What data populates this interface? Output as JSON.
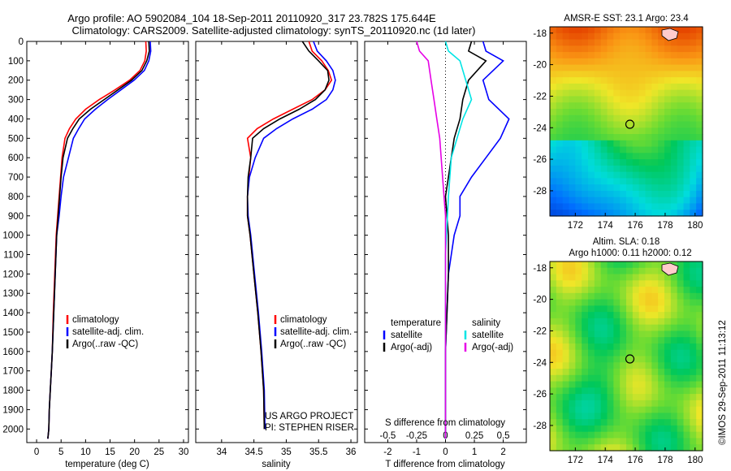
{
  "title": {
    "line1": "Argo profile: AO 5902084_104 18-Sep-2011 20110920_317 23.782S 175.644E",
    "line2": "Climatology: CARS2009. Satellite-adjusted climatology: synTS_20110920.nc (1d later)"
  },
  "credit": "©IMOS 29-Sep-2011 11:13:12",
  "colors": {
    "climatology": "#ff0000",
    "satellite": "#0000ff",
    "argo": "#000000",
    "salinity_satellite": "#00e5e5",
    "salinity_argo": "#e600e6"
  },
  "chart_data": [
    {
      "type": "line",
      "xlabel": "temperature (deg C)",
      "xlim": [
        -2,
        31
      ],
      "xticks": [
        "0",
        "5",
        "10",
        "15",
        "20",
        "25",
        "30"
      ],
      "ylim": [
        0,
        2070
      ],
      "yticks": [
        "0",
        "100",
        "200",
        "300",
        "400",
        "500",
        "600",
        "700",
        "800",
        "900",
        "1000",
        "1100",
        "1200",
        "1300",
        "1400",
        "1500",
        "1600",
        "1700",
        "1800",
        "1900",
        "2000"
      ],
      "legend": [
        "climatology",
        "satellite-adj. clim.",
        "Argo(..raw -QC)"
      ],
      "series": [
        {
          "name": "climatology",
          "x": [
            22.3,
            22.4,
            22.1,
            21.1,
            19.0,
            16.0,
            12.8,
            10.0,
            8.0,
            6.7,
            5.8,
            5.2,
            4.9,
            4.6,
            4.3,
            4.0,
            3.7,
            3.4,
            3.2,
            3.0,
            2.8,
            2.6,
            2.5,
            2.3
          ],
          "y": [
            0,
            50,
            100,
            150,
            200,
            250,
            300,
            350,
            400,
            450,
            500,
            600,
            700,
            800,
            900,
            1000,
            1200,
            1400,
            1600,
            1700,
            1800,
            1900,
            2000,
            2050
          ]
        },
        {
          "name": "satellite-adj. clim.",
          "x": [
            23.2,
            23.3,
            22.9,
            22.0,
            19.9,
            17.2,
            14.5,
            12.0,
            9.8,
            8.6,
            7.5,
            6.5,
            5.5,
            5.0,
            4.6,
            4.1,
            3.8,
            3.5,
            3.2,
            3.0,
            2.8,
            2.6,
            2.5,
            2.3
          ],
          "y": [
            0,
            50,
            100,
            150,
            200,
            250,
            300,
            350,
            400,
            450,
            500,
            600,
            700,
            800,
            900,
            1000,
            1200,
            1400,
            1600,
            1700,
            1800,
            1900,
            2000,
            2050
          ]
        },
        {
          "name": "Argo(..raw -QC)",
          "x": [
            22.9,
            23.0,
            22.5,
            21.5,
            19.4,
            16.6,
            13.8,
            11.0,
            8.7,
            7.4,
            6.3,
            5.4,
            5.0,
            4.7,
            4.4,
            4.1,
            3.8,
            3.5,
            3.2,
            3.0,
            2.8,
            2.6,
            2.5,
            2.3
          ],
          "y": [
            0,
            50,
            100,
            150,
            200,
            250,
            300,
            350,
            400,
            450,
            500,
            600,
            700,
            800,
            900,
            1000,
            1200,
            1400,
            1600,
            1700,
            1800,
            1900,
            2000,
            2050
          ]
        }
      ]
    },
    {
      "type": "line",
      "xlabel": "salinity",
      "xlim": [
        33.6,
        36.1
      ],
      "xticks": [
        "34",
        "34.5",
        "35",
        "35.5",
        "36"
      ],
      "ylim": [
        0,
        2070
      ],
      "legend": [
        "climatology",
        "satellite-adj. clim.",
        "Argo(..raw -QC)"
      ],
      "annotations": [
        "US ARGO PROJECT",
        "PI: STEPHEN RISER"
      ],
      "series": [
        {
          "name": "climatology",
          "x": [
            35.35,
            35.4,
            35.55,
            35.65,
            35.7,
            35.6,
            35.4,
            35.1,
            34.8,
            34.55,
            34.4,
            34.45,
            34.42,
            34.4,
            34.4,
            34.44,
            34.5,
            34.56,
            34.61,
            34.65,
            34.66
          ],
          "y": [
            0,
            50,
            100,
            150,
            200,
            250,
            300,
            350,
            400,
            450,
            500,
            600,
            700,
            800,
            900,
            1000,
            1200,
            1400,
            1600,
            1800,
            2000
          ]
        },
        {
          "name": "satellite-adj. clim.",
          "x": [
            35.42,
            35.48,
            35.62,
            35.72,
            35.76,
            35.72,
            35.62,
            35.4,
            35.1,
            34.85,
            34.65,
            34.52,
            34.43,
            34.4,
            34.41,
            34.45,
            34.51,
            34.57,
            34.62,
            34.66,
            34.67
          ],
          "y": [
            0,
            50,
            100,
            150,
            200,
            250,
            300,
            350,
            400,
            450,
            500,
            600,
            700,
            800,
            900,
            1000,
            1200,
            1400,
            1600,
            1800,
            2000
          ]
        },
        {
          "name": "Argo(..raw -QC)",
          "x": [
            35.25,
            35.35,
            35.5,
            35.64,
            35.66,
            35.6,
            35.45,
            35.2,
            34.9,
            34.65,
            34.48,
            34.45,
            34.41,
            34.4,
            34.4,
            34.44,
            34.5,
            34.56,
            34.61,
            34.65,
            34.66
          ],
          "y": [
            0,
            50,
            100,
            150,
            200,
            250,
            300,
            350,
            400,
            450,
            500,
            600,
            700,
            800,
            900,
            1000,
            1200,
            1400,
            1600,
            1800,
            2000
          ]
        }
      ]
    },
    {
      "type": "line",
      "xlabel": "T difference from climatology",
      "x2label": "S difference from climatology",
      "xlim": [
        -2.8,
        2.8
      ],
      "xticks": [
        "-2",
        "-1",
        "0",
        "1",
        "2"
      ],
      "x2ticks": [
        "-0.5",
        "-0.25",
        "0",
        "0.25",
        "0.5"
      ],
      "ylim": [
        0,
        2070
      ],
      "legend_temperature": [
        "temperature",
        "satellite",
        "Argo(-adj)"
      ],
      "legend_salinity": [
        "salinity",
        "satellite",
        "Argo(-adj)"
      ],
      "series": [
        {
          "name": "satellite",
          "x": [
            1.3,
            1.4,
            2.0,
            1.3,
            1.5,
            2.2,
            1.9,
            1.4,
            0.9,
            0.5,
            0.5,
            0.3,
            0.1,
            0,
            0
          ],
          "y": [
            0,
            50,
            100,
            200,
            300,
            400,
            500,
            600,
            700,
            800,
            900,
            1000,
            1200,
            1600,
            2050
          ]
        },
        {
          "name": "Argo(-adj)",
          "x": [
            0.9,
            0.8,
            1.4,
            0.8,
            0.6,
            0.5,
            0.3,
            0.2,
            0.1,
            0,
            0.1,
            0.1,
            0,
            0
          ],
          "y": [
            0,
            50,
            100,
            200,
            300,
            400,
            500,
            600,
            700,
            800,
            1000,
            1200,
            1600,
            2050
          ]
        },
        {
          "name": "satellite",
          "x": [
            0,
            0.1,
            0.5,
            0.7,
            0.9,
            0.6,
            0.4,
            0.2,
            0.1,
            0,
            0
          ],
          "y": [
            0,
            50,
            100,
            200,
            300,
            400,
            500,
            600,
            800,
            1100,
            2050
          ]
        },
        {
          "name": "Argo(-adj)",
          "x": [
            -1.0,
            -0.9,
            -0.6,
            -0.5,
            -0.4,
            -0.3,
            -0.2,
            -0.1,
            0,
            0
          ],
          "y": [
            0,
            50,
            100,
            200,
            300,
            400,
            500,
            700,
            900,
            2050
          ]
        }
      ]
    },
    {
      "type": "heatmap",
      "title": "AMSR-E SST: 23.1  Argo: 23.4",
      "xlim": [
        170.3,
        180.5
      ],
      "ylim": [
        -29.6,
        -17.6
      ],
      "xticks": [
        "172",
        "174",
        "176",
        "178",
        "180"
      ],
      "yticks": [
        "-18",
        "-20",
        "-22",
        "-24",
        "-26",
        "-28"
      ],
      "marker": {
        "x": 175.644,
        "y": -23.782
      }
    },
    {
      "type": "heatmap",
      "title": "Altim. SLA: 0.18",
      "subtitle": "Argo h1000: 0.11 h2000: 0.12",
      "xlim": [
        170.3,
        180.5
      ],
      "ylim": [
        -29.6,
        -17.6
      ],
      "xticks": [
        "172",
        "174",
        "176",
        "178",
        "180"
      ],
      "yticks": [
        "-18",
        "-20",
        "-22",
        "-24",
        "-26",
        "-28"
      ],
      "marker": {
        "x": 175.644,
        "y": -23.782
      }
    }
  ]
}
